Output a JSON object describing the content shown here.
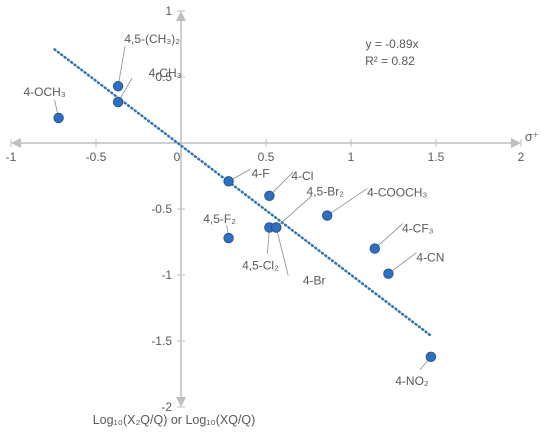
{
  "chart_data": {
    "type": "scatter",
    "title": "",
    "xlabel": "σ⁺",
    "ylabel": "Log₁₀(X₂Q/Q) or Log₁₀(XQ/Q)",
    "xlim": [
      -1,
      2
    ],
    "ylim": [
      -2,
      1
    ],
    "x_ticks": [
      -1,
      -0.5,
      0,
      0.5,
      1,
      1.5,
      2
    ],
    "y_ticks": [
      1,
      0.5,
      0,
      -0.5,
      -1,
      -1.5,
      -2
    ],
    "x_tick_labels": [
      "-1",
      "-0.5",
      "0",
      "0.5",
      "1",
      "1.5",
      "2"
    ],
    "y_tick_labels": [
      "1",
      "0.5",
      "0",
      "-0.5",
      "-1",
      "-1.5",
      "-2"
    ],
    "grid": false,
    "colors": {
      "point": "#2e6fbf",
      "point_edge": "#1f4e8c",
      "trendline": "#2e74b5",
      "axis": "#bfbfbf",
      "leader": "#8c8c8c"
    },
    "points": [
      {
        "label": "4-OCH₃",
        "x": -0.72,
        "y": 0.19
      },
      {
        "label": "4,5-(CH₃)₂",
        "x": -0.37,
        "y": 0.43
      },
      {
        "label": "4-CH₃",
        "x": -0.37,
        "y": 0.31
      },
      {
        "label": "4-F",
        "x": 0.28,
        "y": -0.29
      },
      {
        "label": "4-Cl",
        "x": 0.52,
        "y": -0.4
      },
      {
        "label": "4,5-Br₂",
        "x": 0.56,
        "y": -0.64
      },
      {
        "label": "4,5-F₂",
        "x": 0.28,
        "y": -0.72
      },
      {
        "label": "4,5-Cl₂",
        "x": 0.52,
        "y": -0.64
      },
      {
        "label": "4-Br",
        "x": 0.56,
        "y": -0.64
      },
      {
        "label": "4-COOCH₃",
        "x": 0.86,
        "y": -0.55
      },
      {
        "label": "4-CF₃",
        "x": 1.14,
        "y": -0.8
      },
      {
        "label": "4-CN",
        "x": 1.22,
        "y": -0.99
      },
      {
        "label": "4-NO₂",
        "x": 1.47,
        "y": -1.62
      }
    ],
    "trendline": {
      "style": "dotted",
      "slope": -0.89,
      "intercept": 0,
      "x_range": [
        -0.72,
        1.47
      ]
    },
    "annotation": {
      "equation": "y = -0.89x",
      "r_squared": "R² = 0.82"
    }
  }
}
